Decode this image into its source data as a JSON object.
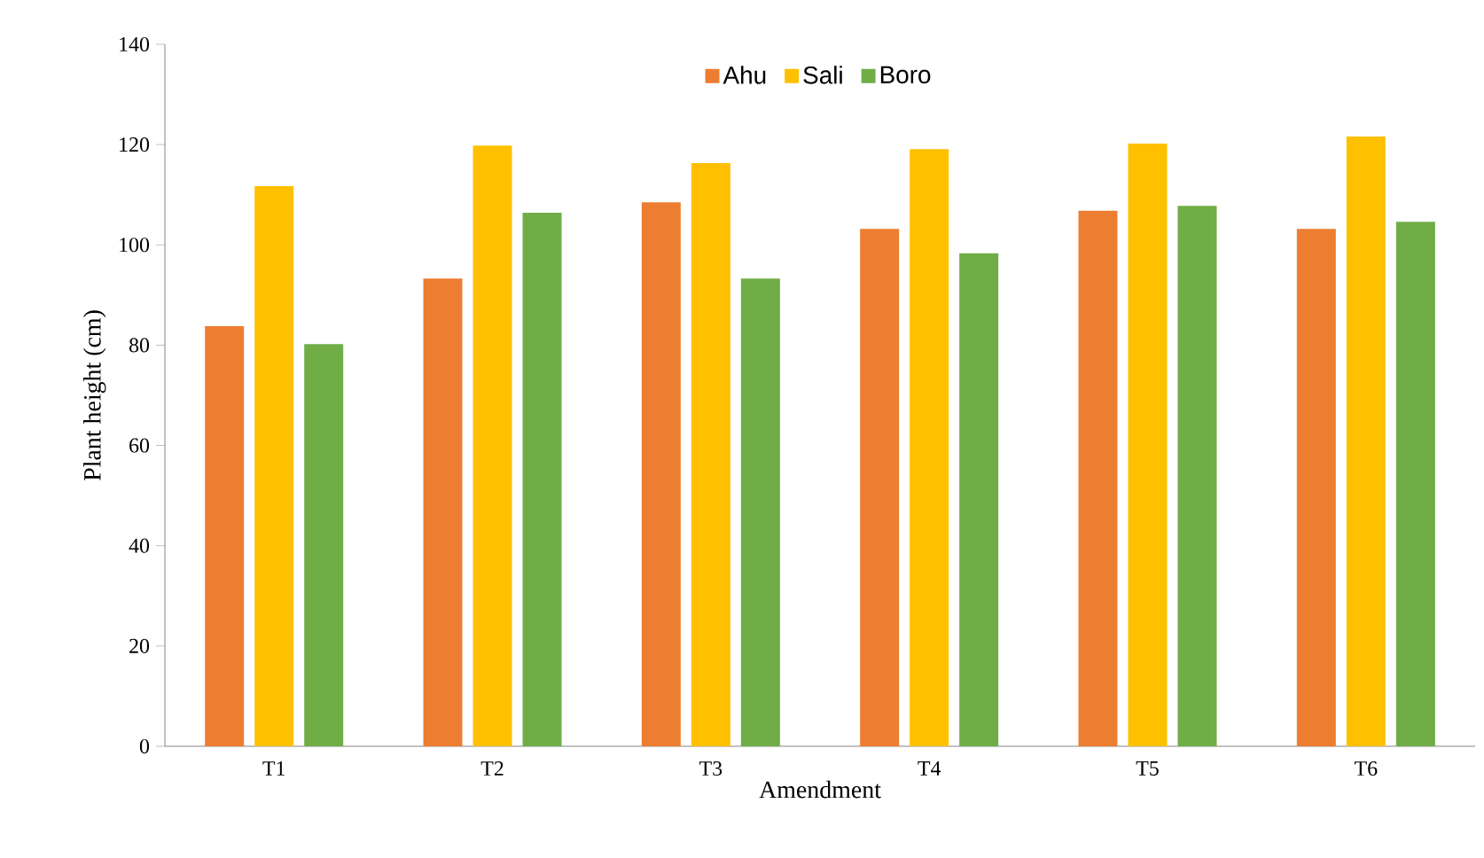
{
  "chart_data": {
    "type": "bar",
    "xlabel": "Amendment",
    "ylabel": "Plant height (cm)",
    "categories": [
      "T1",
      "T2",
      "T3",
      "T4",
      "T5",
      "T6"
    ],
    "series": [
      {
        "name": "Ahu",
        "color": "#ed7d31",
        "values": [
          83.8,
          93.3,
          108.5,
          103.2,
          106.8,
          103.2
        ]
      },
      {
        "name": "Sali",
        "color": "#ffc000",
        "values": [
          111.7,
          119.8,
          116.3,
          119.1,
          120.2,
          121.6
        ]
      },
      {
        "name": "Boro",
        "color": "#70ad47",
        "values": [
          80.2,
          106.4,
          93.3,
          98.3,
          107.8,
          104.6
        ]
      }
    ],
    "ylim": [
      0,
      140
    ],
    "yticks": [
      0,
      20,
      40,
      60,
      80,
      100,
      120,
      140
    ],
    "legend": "top"
  }
}
